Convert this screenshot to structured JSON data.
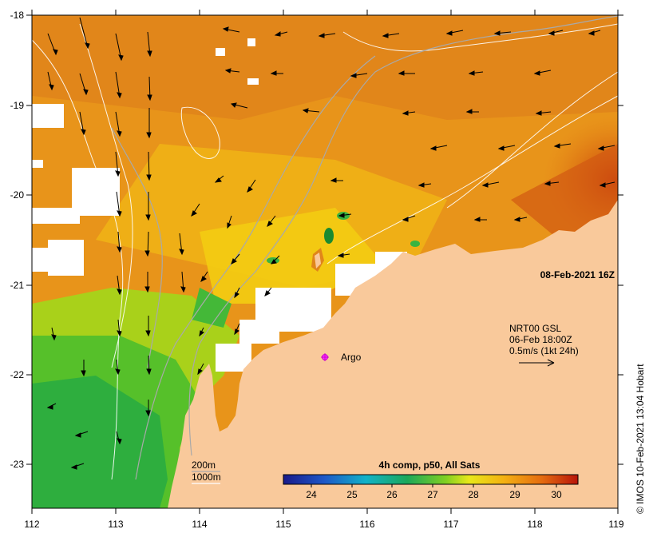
{
  "map": {
    "x_ticks": [
      "112",
      "113",
      "114",
      "115",
      "116",
      "117",
      "118",
      "119"
    ],
    "y_ticks": [
      "-18",
      "-19",
      "-20",
      "-21",
      "-22",
      "-23"
    ],
    "date_label": "08-Feb-2021 16Z",
    "argo_label": "Argo",
    "current_info": {
      "line1": "NRT00 GSL",
      "line2": "06-Feb 18:00Z",
      "line3": "0.5m/s (1kt 24h)"
    },
    "isobaths": {
      "a": "200m",
      "b": "1000m"
    },
    "colorbar": {
      "title": "4h comp, p50, All Sats",
      "ticks": [
        "24",
        "25",
        "26",
        "27",
        "28",
        "29",
        "30"
      ]
    },
    "credit": "© IMOS 10-Feb-2021 13:04 Hobart"
  },
  "colors": {
    "land": "#f9c99b",
    "warm_sst": "#e98a16",
    "hot_sst": "#c83a0a",
    "cool_sst": "#2db74a",
    "mid_sst": "#f2c20e",
    "cloud": "#ffffff"
  }
}
